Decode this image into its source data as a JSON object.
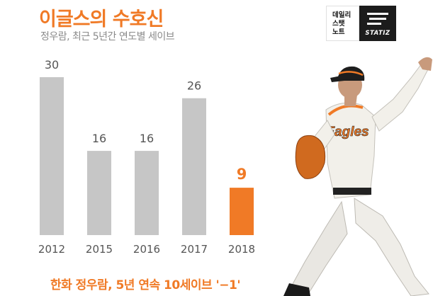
{
  "header": {
    "title": "이글스의 수호신",
    "subtitle": "정우람, 최근 5년간 연도별 세이브"
  },
  "logo": {
    "brand_lines": [
      "데일리",
      "스탯",
      "노트"
    ],
    "brand_word": "STATIZ"
  },
  "player_photo": {
    "jersey_text": "Eagles"
  },
  "caption": "한화 정우람, 5년 연속 10세이브  '−1'",
  "colors": {
    "accent": "#f07a26",
    "bar": "#c6c6c6",
    "value_label": "#555555",
    "logo_dark": "#1c1c1c"
  },
  "chart_data": {
    "type": "bar",
    "categories": [
      "2012",
      "2015",
      "2016",
      "2017",
      "2018"
    ],
    "values": [
      30,
      16,
      16,
      26,
      9
    ],
    "highlight_index": 4,
    "title": "이글스의 수호신",
    "subtitle": "정우람, 최근 5년간 연도별 세이브",
    "xlabel": "",
    "ylabel": "",
    "ylim": [
      0,
      30
    ],
    "grid": false
  }
}
